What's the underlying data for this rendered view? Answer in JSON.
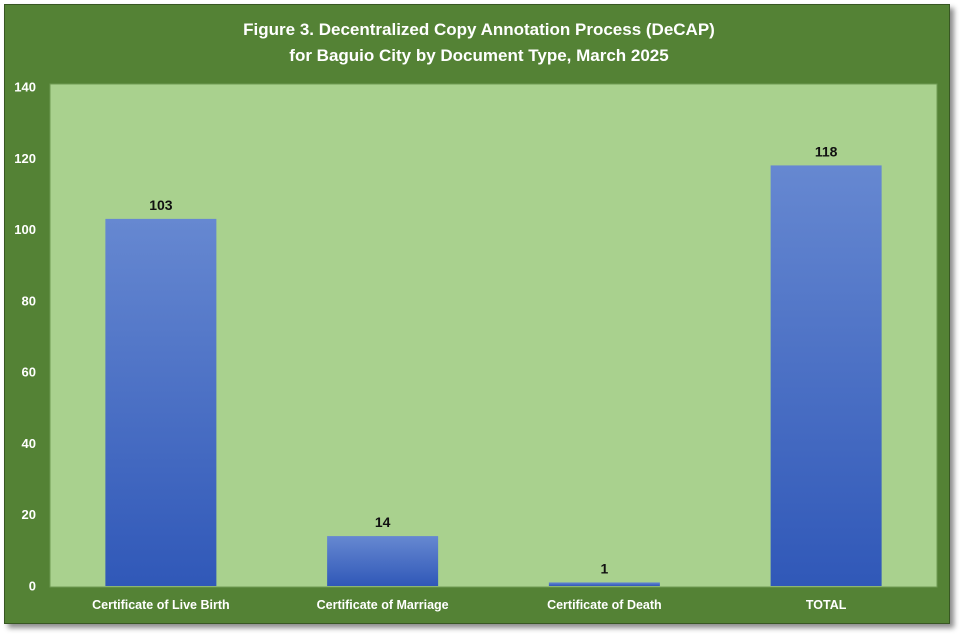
{
  "colors": {
    "outer_background": "#548235",
    "plot_background": "#a9d18e",
    "border": "#385723",
    "bar_top": "#6688d1",
    "bar_bottom": "#3058b8",
    "title_text": "#ffffff",
    "value_label_text": "#111111"
  },
  "chart_data": {
    "type": "bar",
    "title_lines": [
      "Figure 3. Decentralized Copy Annotation Process (DeCAP)",
      "for Baguio City by Document Type, March 2025"
    ],
    "xlabel": "",
    "ylabel": "",
    "categories": [
      "Certificate of Live Birth",
      "Certificate of Marriage",
      "Certificate of Death",
      "TOTAL"
    ],
    "values": [
      103,
      14,
      1,
      118
    ],
    "data_labels": [
      "103",
      "14",
      "1",
      "118"
    ],
    "ylim": [
      0,
      140
    ],
    "yticks": [
      0,
      20,
      40,
      60,
      80,
      100,
      120,
      140
    ],
    "grid": false,
    "legend": "none"
  }
}
